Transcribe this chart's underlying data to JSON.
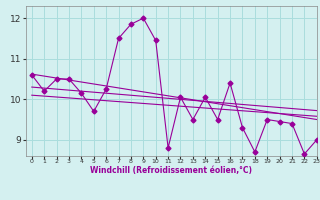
{
  "x": [
    0,
    1,
    2,
    3,
    4,
    5,
    6,
    7,
    8,
    9,
    10,
    11,
    12,
    13,
    14,
    15,
    16,
    17,
    18,
    19,
    20,
    21,
    22,
    23
  ],
  "y_main": [
    10.6,
    10.2,
    10.5,
    10.5,
    10.15,
    9.7,
    10.25,
    11.5,
    11.85,
    12.0,
    11.45,
    8.8,
    10.05,
    9.5,
    10.05,
    9.5,
    10.4,
    9.3,
    8.7,
    9.5,
    9.45,
    9.4,
    8.65,
    9.0
  ],
  "trend1_x": [
    0,
    23
  ],
  "trend1_y": [
    10.62,
    9.5
  ],
  "trend2_x": [
    0,
    23
  ],
  "trend2_y": [
    10.3,
    9.72
  ],
  "trend3_x": [
    0,
    23
  ],
  "trend3_y": [
    10.1,
    9.58
  ],
  "xlim": [
    -0.5,
    23
  ],
  "ylim": [
    8.6,
    12.3
  ],
  "yticks": [
    9,
    10,
    11,
    12
  ],
  "xticks": [
    0,
    1,
    2,
    3,
    4,
    5,
    6,
    7,
    8,
    9,
    10,
    11,
    12,
    13,
    14,
    15,
    16,
    17,
    18,
    19,
    20,
    21,
    22,
    23
  ],
  "xlabel": "Windchill (Refroidissement éolien,°C)",
  "line_color": "#990099",
  "bg_color": "#d4f0f0",
  "grid_color": "#aadddd",
  "marker": "D",
  "markersize": 2.5,
  "linewidth": 0.8
}
